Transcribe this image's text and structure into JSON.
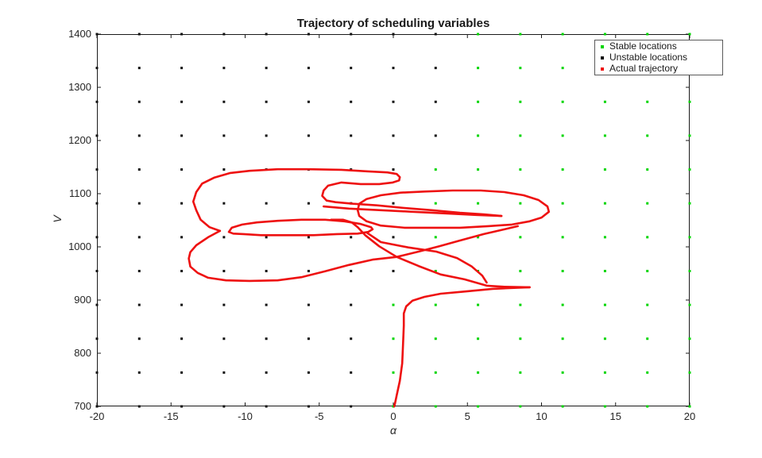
{
  "figure": {
    "background": "#ffffff"
  },
  "chart_data": {
    "type": "line",
    "title": "Trajectory of scheduling variables",
    "xlabel": "α",
    "ylabel": "V",
    "xlim": [
      -20,
      20
    ],
    "ylim": [
      700,
      1400
    ],
    "xticks": [
      -20,
      -15,
      -10,
      -5,
      0,
      5,
      10,
      15,
      20
    ],
    "yticks": [
      700,
      800,
      900,
      1000,
      1100,
      1200,
      1300,
      1400
    ],
    "axis_color": "#1a1a1a",
    "tick_label_color": "#262626",
    "legend": {
      "position": "top-right",
      "items": [
        {
          "label": "Stable locations",
          "color": "#00d500"
        },
        {
          "label": "Unstable locations",
          "color": "#111111"
        },
        {
          "label": "Actual trajectory",
          "color": "#ee1111"
        }
      ]
    },
    "grid_points": {
      "alpha_count": 15,
      "V_count": 12,
      "alpha_range": [
        -20,
        20
      ],
      "V_range": [
        700,
        1400
      ],
      "stable_color": "#00d500",
      "unstable_color": "#111111",
      "first_stable_col_by_row_bottom_up": [
        7,
        7,
        7,
        7,
        8,
        8,
        8,
        8,
        9,
        9,
        9,
        9
      ]
    },
    "trajectory": {
      "color": "#ee1111",
      "line_width": 2.6,
      "strokes": [
        [
          [
            0.07,
            700
          ],
          [
            0.23,
            721
          ],
          [
            0.44,
            748
          ],
          [
            0.6,
            781
          ],
          [
            0.66,
            819
          ],
          [
            0.71,
            852
          ],
          [
            0.71,
            875
          ],
          [
            0.87,
            888
          ],
          [
            1.3,
            899
          ],
          [
            2.1,
            906
          ],
          [
            3.2,
            912
          ],
          [
            4.8,
            916
          ],
          [
            6.7,
            921
          ],
          [
            8.3,
            923
          ],
          [
            9.2,
            924
          ]
        ],
        [
          [
            9.2,
            924
          ],
          [
            7.5,
            925
          ],
          [
            6.3,
            927
          ],
          [
            4.8,
            939
          ],
          [
            3.2,
            948
          ],
          [
            1.7,
            964
          ],
          [
            0.23,
            981
          ],
          [
            -0.95,
            1001
          ],
          [
            -1.9,
            1022
          ],
          [
            -2.4,
            1037
          ],
          [
            -2.8,
            1046
          ],
          [
            -3.4,
            1051
          ],
          [
            -4.2,
            1051
          ]
        ],
        [
          [
            -11.7,
            1030
          ],
          [
            -12.5,
            1018
          ],
          [
            -13.3,
            1003
          ],
          [
            -13.7,
            990
          ],
          [
            -13.8,
            978
          ],
          [
            -13.7,
            963
          ],
          [
            -13.2,
            951
          ],
          [
            -12.5,
            942
          ],
          [
            -11.3,
            937
          ],
          [
            -9.7,
            936
          ],
          [
            -7.8,
            937
          ],
          [
            -6.2,
            943
          ],
          [
            -4.6,
            954
          ],
          [
            -3.0,
            966
          ],
          [
            -1.4,
            976
          ],
          [
            0.23,
            981
          ],
          [
            1.7,
            991
          ],
          [
            3.1,
            1001
          ],
          [
            4.5,
            1012
          ],
          [
            6.1,
            1024
          ],
          [
            7.5,
            1033
          ],
          [
            8.4,
            1039
          ]
        ],
        [
          [
            -11.7,
            1030
          ],
          [
            -12.4,
            1037
          ],
          [
            -13.0,
            1051
          ],
          [
            -13.3,
            1069
          ],
          [
            -13.5,
            1085
          ],
          [
            -13.3,
            1103
          ],
          [
            -12.9,
            1119
          ],
          [
            -12.1,
            1130
          ],
          [
            -11.0,
            1139
          ],
          [
            -9.7,
            1143
          ],
          [
            -7.8,
            1146
          ],
          [
            -5.7,
            1146
          ],
          [
            -3.5,
            1145
          ],
          [
            -1.7,
            1142
          ],
          [
            -0.4,
            1140
          ],
          [
            0.23,
            1137
          ],
          [
            0.44,
            1131
          ],
          [
            0.39,
            1125
          ],
          [
            -0.04,
            1121
          ],
          [
            -0.95,
            1118
          ],
          [
            -2.2,
            1118
          ],
          [
            -3.5,
            1121
          ],
          [
            -4.4,
            1115
          ],
          [
            -4.7,
            1106
          ],
          [
            -4.8,
            1096
          ],
          [
            -4.5,
            1087
          ],
          [
            -3.9,
            1084
          ],
          [
            -2.7,
            1081
          ],
          [
            -1.1,
            1078
          ],
          [
            0.76,
            1073
          ],
          [
            2.6,
            1069
          ],
          [
            4.5,
            1064
          ],
          [
            6.1,
            1061
          ],
          [
            7.3,
            1058
          ]
        ],
        [
          [
            -4.7,
            1076
          ],
          [
            -3.0,
            1072
          ],
          [
            -0.84,
            1069
          ],
          [
            1.3,
            1066
          ],
          [
            3.5,
            1063
          ],
          [
            5.6,
            1060
          ],
          [
            7.3,
            1058
          ]
        ],
        [
          [
            -2.4,
            1069
          ],
          [
            -2.3,
            1081
          ],
          [
            -1.8,
            1090
          ],
          [
            -0.84,
            1097
          ],
          [
            0.5,
            1102
          ],
          [
            2.1,
            1104
          ],
          [
            4.0,
            1106
          ],
          [
            5.9,
            1106
          ],
          [
            7.5,
            1103
          ],
          [
            8.8,
            1097
          ],
          [
            9.8,
            1088
          ],
          [
            10.4,
            1076
          ],
          [
            10.5,
            1066
          ],
          [
            10.0,
            1055
          ],
          [
            9.2,
            1048
          ],
          [
            8.0,
            1042
          ],
          [
            6.4,
            1039
          ],
          [
            4.5,
            1036
          ],
          [
            2.6,
            1036
          ],
          [
            0.76,
            1036
          ],
          [
            -0.84,
            1040
          ],
          [
            -1.8,
            1048
          ],
          [
            -2.3,
            1058
          ],
          [
            -2.4,
            1069
          ]
        ],
        [
          [
            -11.1,
            1028
          ],
          [
            -10.9,
            1036
          ],
          [
            -10.2,
            1042
          ],
          [
            -9.2,
            1046
          ],
          [
            -7.8,
            1049
          ],
          [
            -6.2,
            1051
          ],
          [
            -4.6,
            1051
          ],
          [
            -3.3,
            1048
          ],
          [
            -2.2,
            1043
          ],
          [
            -1.5,
            1037
          ],
          [
            -1.4,
            1033
          ],
          [
            -1.7,
            1028
          ],
          [
            -2.4,
            1025
          ],
          [
            -3.8,
            1024
          ],
          [
            -5.4,
            1022
          ],
          [
            -7.3,
            1022
          ],
          [
            -8.9,
            1022
          ],
          [
            -10.1,
            1024
          ],
          [
            -10.8,
            1025
          ],
          [
            -11.1,
            1028
          ]
        ],
        [
          [
            -1.8,
            1027
          ],
          [
            -0.84,
            1009
          ],
          [
            1.0,
            999
          ],
          [
            2.9,
            991
          ],
          [
            4.3,
            979
          ],
          [
            5.3,
            963
          ],
          [
            6.0,
            946
          ],
          [
            6.3,
            933
          ]
        ]
      ]
    }
  }
}
